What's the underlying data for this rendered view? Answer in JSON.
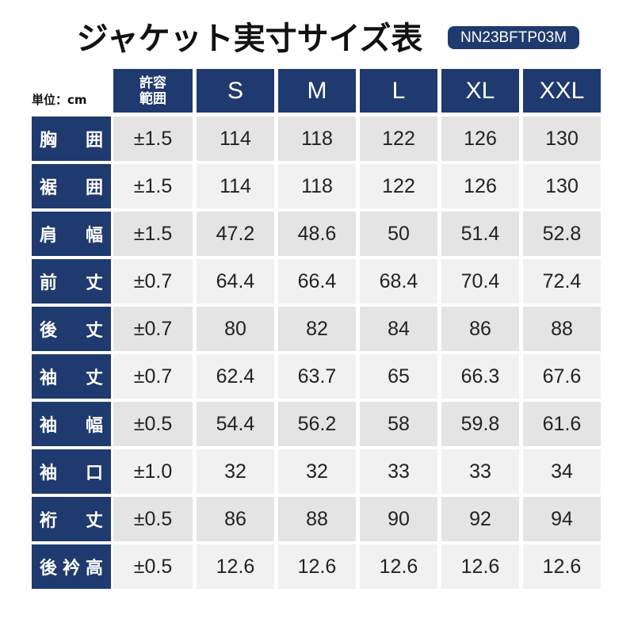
{
  "header": {
    "title": "ジャケット実寸サイズ表",
    "code": "NN23BFTP03M",
    "unit": "単位：cm"
  },
  "table": {
    "tolerance_header": [
      "許容",
      "範囲"
    ],
    "sizes": [
      "S",
      "M",
      "L",
      "XL",
      "XXL"
    ],
    "rows": [
      {
        "label": "胸囲",
        "tolerance": "±1.5",
        "values": [
          "114",
          "118",
          "122",
          "126",
          "130"
        ]
      },
      {
        "label": "裾囲",
        "tolerance": "±1.5",
        "values": [
          "114",
          "118",
          "122",
          "126",
          "130"
        ]
      },
      {
        "label": "肩幅",
        "tolerance": "±1.5",
        "values": [
          "47.2",
          "48.6",
          "50",
          "51.4",
          "52.8"
        ]
      },
      {
        "label": "前丈",
        "tolerance": "±0.7",
        "values": [
          "64.4",
          "66.4",
          "68.4",
          "70.4",
          "72.4"
        ]
      },
      {
        "label": "後丈",
        "tolerance": "±0.7",
        "values": [
          "80",
          "82",
          "84",
          "86",
          "88"
        ]
      },
      {
        "label": "袖丈",
        "tolerance": "±0.7",
        "values": [
          "62.4",
          "63.7",
          "65",
          "66.3",
          "67.6"
        ]
      },
      {
        "label": "袖幅",
        "tolerance": "±0.5",
        "values": [
          "54.4",
          "56.2",
          "58",
          "59.8",
          "61.6"
        ]
      },
      {
        "label": "袖口",
        "tolerance": "±1.0",
        "values": [
          "32",
          "32",
          "33",
          "33",
          "34"
        ]
      },
      {
        "label": "裄丈",
        "tolerance": "±0.5",
        "values": [
          "86",
          "88",
          "90",
          "92",
          "94"
        ]
      },
      {
        "label": "後衿高",
        "tolerance": "±0.5",
        "values": [
          "12.6",
          "12.6",
          "12.6",
          "12.6",
          "12.6"
        ]
      }
    ]
  }
}
